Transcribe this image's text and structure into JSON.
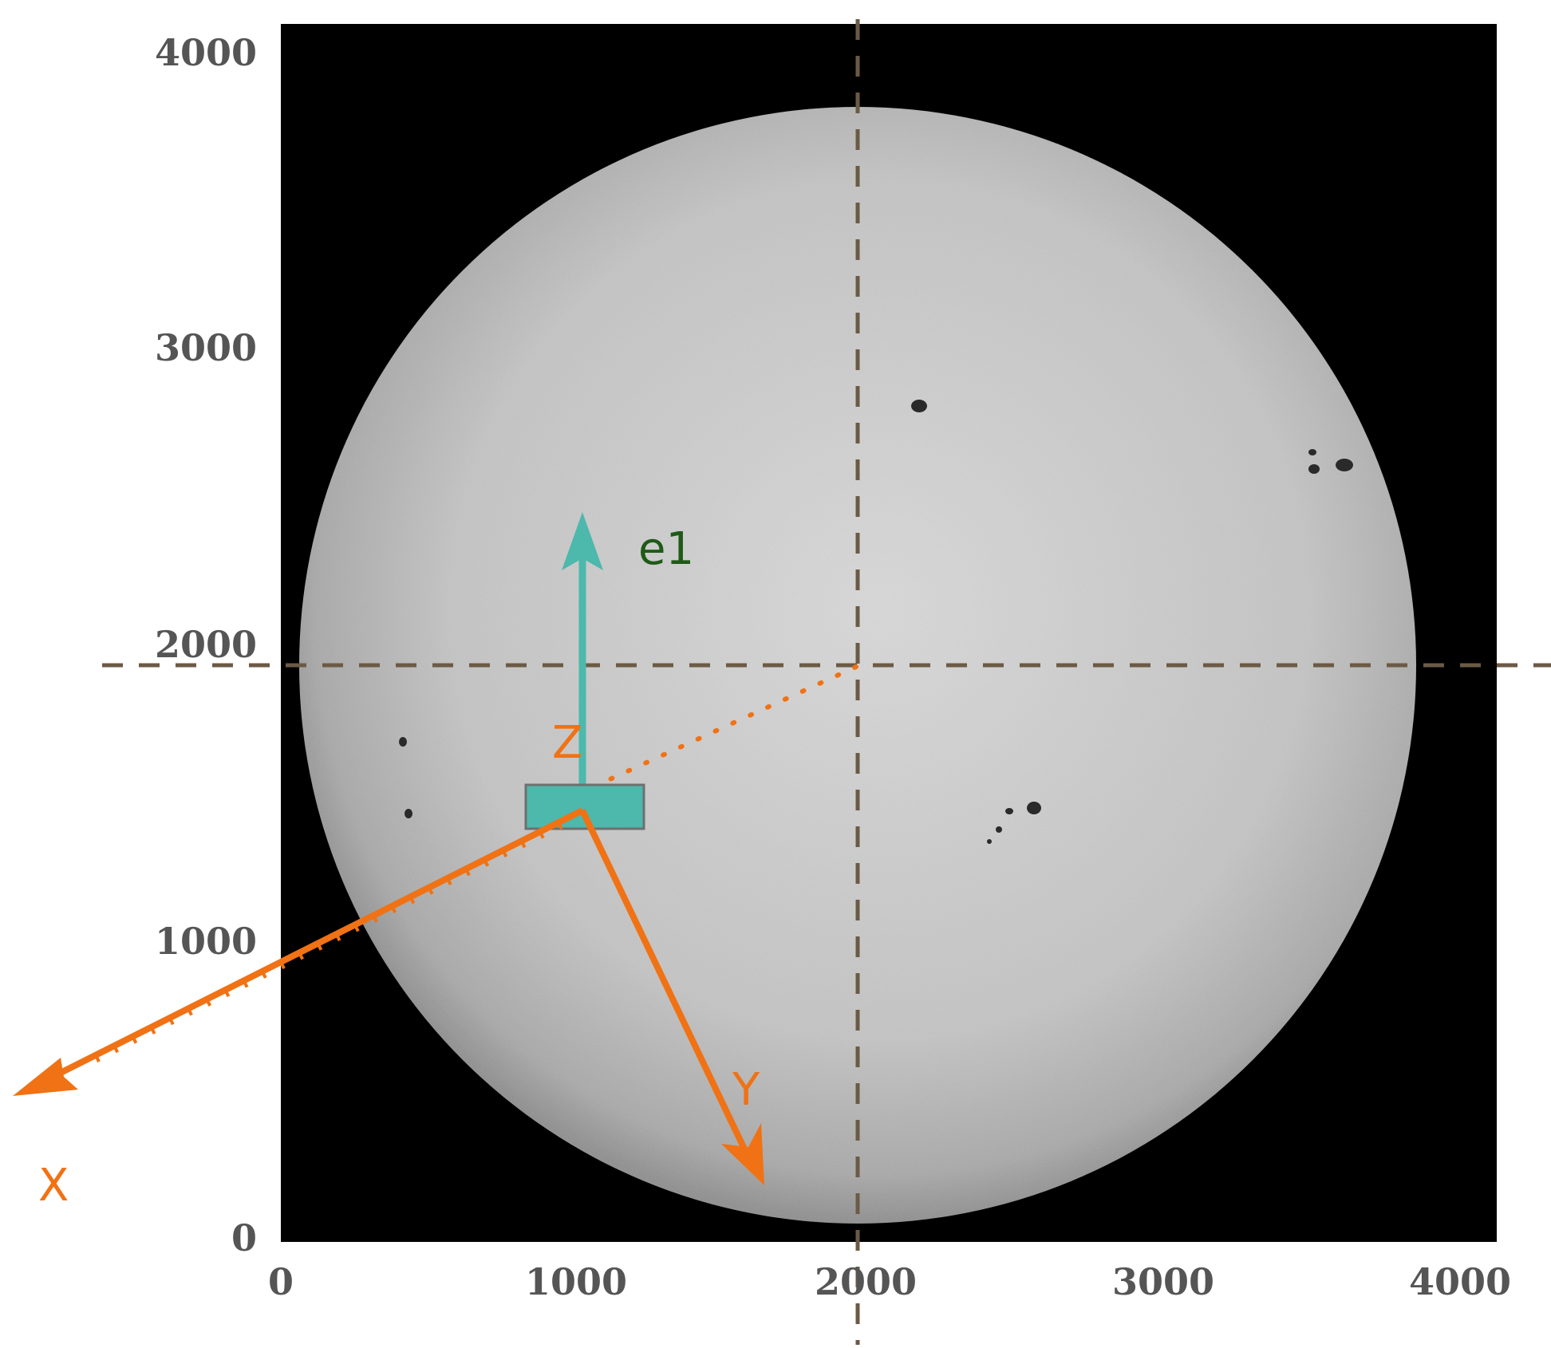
{
  "plot": {
    "x_ticks": [
      "0",
      "1000",
      "2000",
      "3000",
      "4000"
    ],
    "y_ticks": [
      "0",
      "1000",
      "2000",
      "3000",
      "4000"
    ],
    "xlim": [
      0,
      4100
    ],
    "ylim": [
      0,
      4100
    ],
    "image": "full-disk sun photograph (grayscale) with sunspots",
    "crosshair_center": [
      1950,
      1950
    ]
  },
  "annotations": {
    "e1": "e1",
    "z": "Z",
    "x": "X",
    "y": "Y"
  },
  "colors": {
    "background": "#000000",
    "disk": "#c8c8c8",
    "crosshair": "#6b5a45",
    "orange": "#f07214",
    "teal": "#4db8ac",
    "e1_label": "#1f5a17"
  }
}
